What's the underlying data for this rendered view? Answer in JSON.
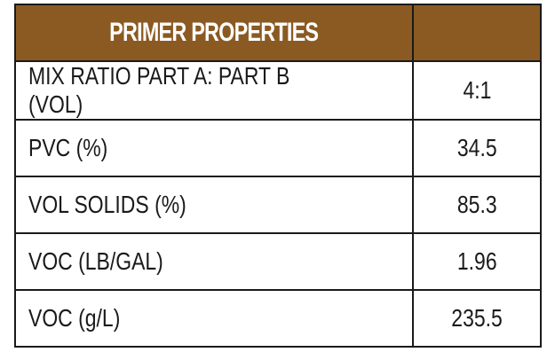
{
  "table": {
    "header": {
      "title": "PRIMER PROPERTIES",
      "value_header": ""
    },
    "rows": [
      {
        "label": "MIX RATIO PART A: PART B (VOL)",
        "value": "4:1"
      },
      {
        "label": "PVC (%)",
        "value": "34.5"
      },
      {
        "label": "VOL SOLIDS (%)",
        "value": "85.3"
      },
      {
        "label": "VOC (LB/GAL)",
        "value": "1.96"
      },
      {
        "label": "VOC (g/L)",
        "value": "235.5"
      }
    ]
  },
  "colors": {
    "header_background": "#8b5a22",
    "header_text": "#ffffff",
    "border": "#1a1a1a"
  }
}
